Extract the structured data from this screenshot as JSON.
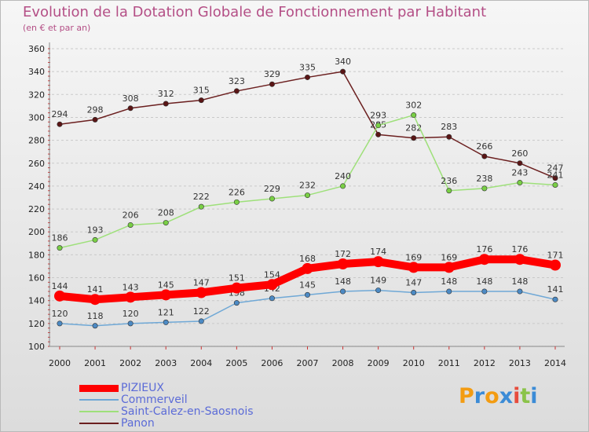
{
  "title": "Evolution de la Dotation Globale de Fonctionnement par Habitant",
  "subtitle": "(en € et par an)",
  "logo_text": "Proxiti",
  "chart_data": {
    "type": "line",
    "x": [
      "2000",
      "2001",
      "2002",
      "2003",
      "2004",
      "2005",
      "2006",
      "2007",
      "2008",
      "2009",
      "2010",
      "2011",
      "2012",
      "2013",
      "2014"
    ],
    "ylim": [
      100,
      360
    ],
    "yticks": [
      100,
      120,
      140,
      160,
      180,
      200,
      220,
      240,
      260,
      280,
      300,
      320,
      340,
      360
    ],
    "grid": "horizontal dashed",
    "legend_position": "bottom-left",
    "series": [
      {
        "name": "Panon",
        "color": "#6b1f1f",
        "point_color": "#5a1515",
        "values": [
          294,
          298,
          308,
          312,
          315,
          323,
          329,
          335,
          340,
          285,
          282,
          283,
          266,
          260,
          247
        ]
      },
      {
        "name": "Saint-Calez-en-Saosnois",
        "color": "#9ee07a",
        "point_color": "#79cf45",
        "values": [
          186,
          193,
          206,
          208,
          222,
          226,
          229,
          232,
          240,
          293,
          302,
          236,
          238,
          243,
          241
        ]
      },
      {
        "name": "Commerveil",
        "color": "#6fa8d6",
        "point_color": "#4c8ac4",
        "values": [
          120,
          118,
          120,
          121,
          122,
          138,
          142,
          145,
          148,
          149,
          147,
          148,
          148,
          148,
          141
        ]
      },
      {
        "name": "PIZIEUX",
        "color": "#ff0000",
        "point_color": "#ff0000",
        "values": [
          144,
          141,
          143,
          145,
          147,
          151,
          154,
          168,
          172,
          174,
          169,
          169,
          176,
          176,
          171
        ]
      }
    ]
  },
  "legend": [
    {
      "name": "PIZIEUX",
      "color": "#ff0000"
    },
    {
      "name": "Commerveil",
      "color": "#6fa8d6"
    },
    {
      "name": "Saint-Calez-en-Saosnois",
      "color": "#9ee07a"
    },
    {
      "name": "Panon",
      "color": "#6b1f1f"
    }
  ]
}
